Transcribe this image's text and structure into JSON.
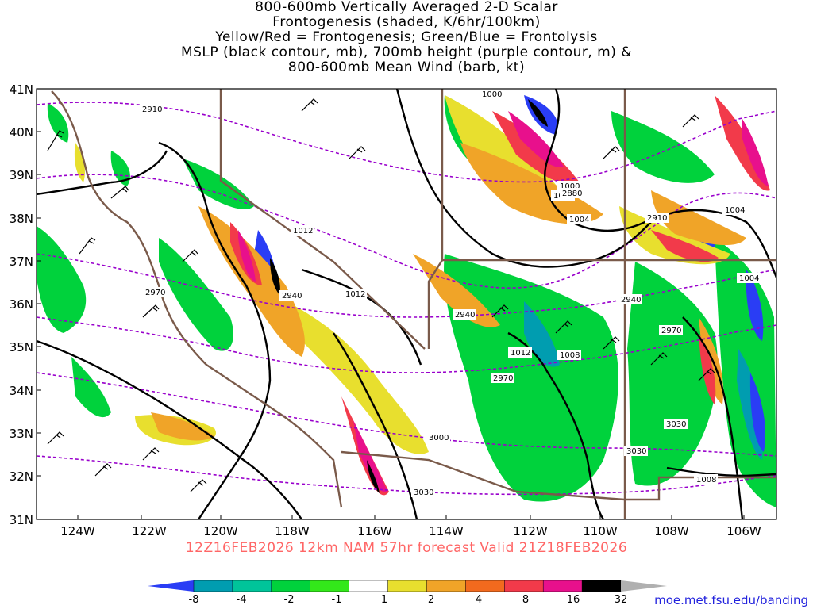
{
  "title_lines": [
    "800-600mb Vertically Averaged 2-D Scalar",
    "Frontogenesis (shaded, K/6hr/100km)",
    "Yellow/Red = Frontogenesis;  Green/Blue = Frontolysis",
    "MSLP (black contour, mb), 700mb height (purple contour, m) &",
    "800-600mb Mean Wind (barb, kt)"
  ],
  "lat_labels": [
    "41N",
    "40N",
    "39N",
    "38N",
    "37N",
    "36N",
    "35N",
    "34N",
    "33N",
    "32N",
    "31N"
  ],
  "lon_labels": [
    "124W",
    "122W",
    "120W",
    "118W",
    "116W",
    "114W",
    "112W",
    "110W",
    "108W",
    "106W"
  ],
  "valid_time": "12Z16FEB2026 12km NAM 57hr forecast Valid 21Z18FEB2026",
  "colorbar": {
    "ticks": [
      "-8",
      "-4",
      "-2",
      "-1",
      "1",
      "2",
      "4",
      "8",
      "16",
      "32"
    ],
    "colors": [
      "#2a3df5",
      "#009db0",
      "#00c49a",
      "#00d23c",
      "#33e81a",
      "#ffffff",
      "#e8df2e",
      "#f0a428",
      "#f26a1e",
      "#f23a4a",
      "#e8108c",
      "#000000",
      "#b0b0b0"
    ]
  },
  "contour_labels": {
    "mslp": [
      "1012",
      "1012",
      "1012",
      "1000",
      "1004",
      "1000",
      "1004",
      "1008",
      "1008",
      "1004",
      "1000"
    ],
    "height": [
      "2910",
      "2970",
      "2940",
      "2940",
      "2880",
      "2910",
      "2940",
      "2970",
      "2970",
      "3000",
      "3030",
      "3030",
      "3030"
    ]
  },
  "colors": {
    "mslp_contour": "#000000",
    "height_contour": "#9900cc",
    "boundary": "#7a5a4a",
    "credit": "#2222dd",
    "valid_time": "#ff6666"
  },
  "credit": "moe.met.fsu.edu/banding"
}
